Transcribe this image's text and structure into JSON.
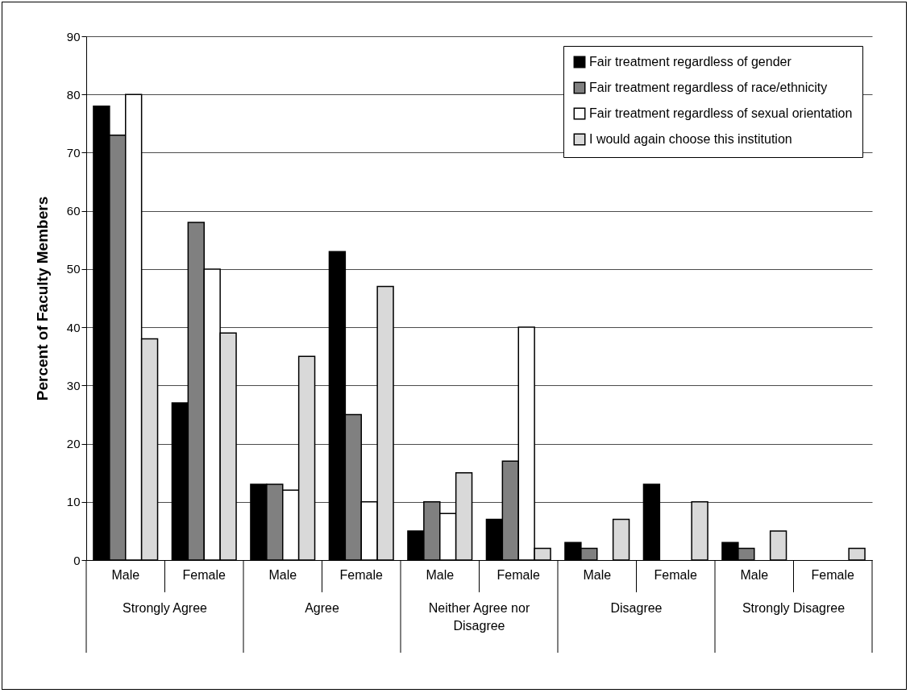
{
  "chart_data": {
    "type": "bar",
    "ylabel": "Percent of Faculty Members",
    "categories": [
      "Male",
      "Female",
      "Male",
      "Female",
      "Male",
      "Female",
      "Male",
      "Female",
      "Male",
      "Female"
    ],
    "annotations": [
      "Strongly Agree",
      "Agree",
      "Neither Agree nor Disagree",
      "Disagree",
      "Strongly Disagree"
    ],
    "series": [
      {
        "name": "Fair treatment regardless of gender",
        "color": "#000000",
        "values": [
          78,
          27,
          13,
          53,
          5,
          7,
          3,
          13,
          3,
          0
        ]
      },
      {
        "name": "Fair treatment regardless of race/ethnicity",
        "color": "#808080",
        "values": [
          73,
          58,
          13,
          25,
          10,
          17,
          2,
          0,
          2,
          0
        ]
      },
      {
        "name": "Fair treatment regardless of sexual orientation",
        "color": "#ffffff",
        "values": [
          80,
          50,
          12,
          10,
          8,
          40,
          0,
          0,
          0,
          0
        ]
      },
      {
        "name": "I would again choose this institution",
        "color": "#d9d9d9",
        "values": [
          38,
          39,
          35,
          47,
          15,
          2,
          7,
          10,
          5,
          2
        ]
      }
    ],
    "ylim": [
      0,
      90
    ],
    "yticks": [
      0,
      10,
      20,
      30,
      40,
      50,
      60,
      70,
      80,
      90
    ],
    "grid": "y",
    "legend": "top right"
  }
}
